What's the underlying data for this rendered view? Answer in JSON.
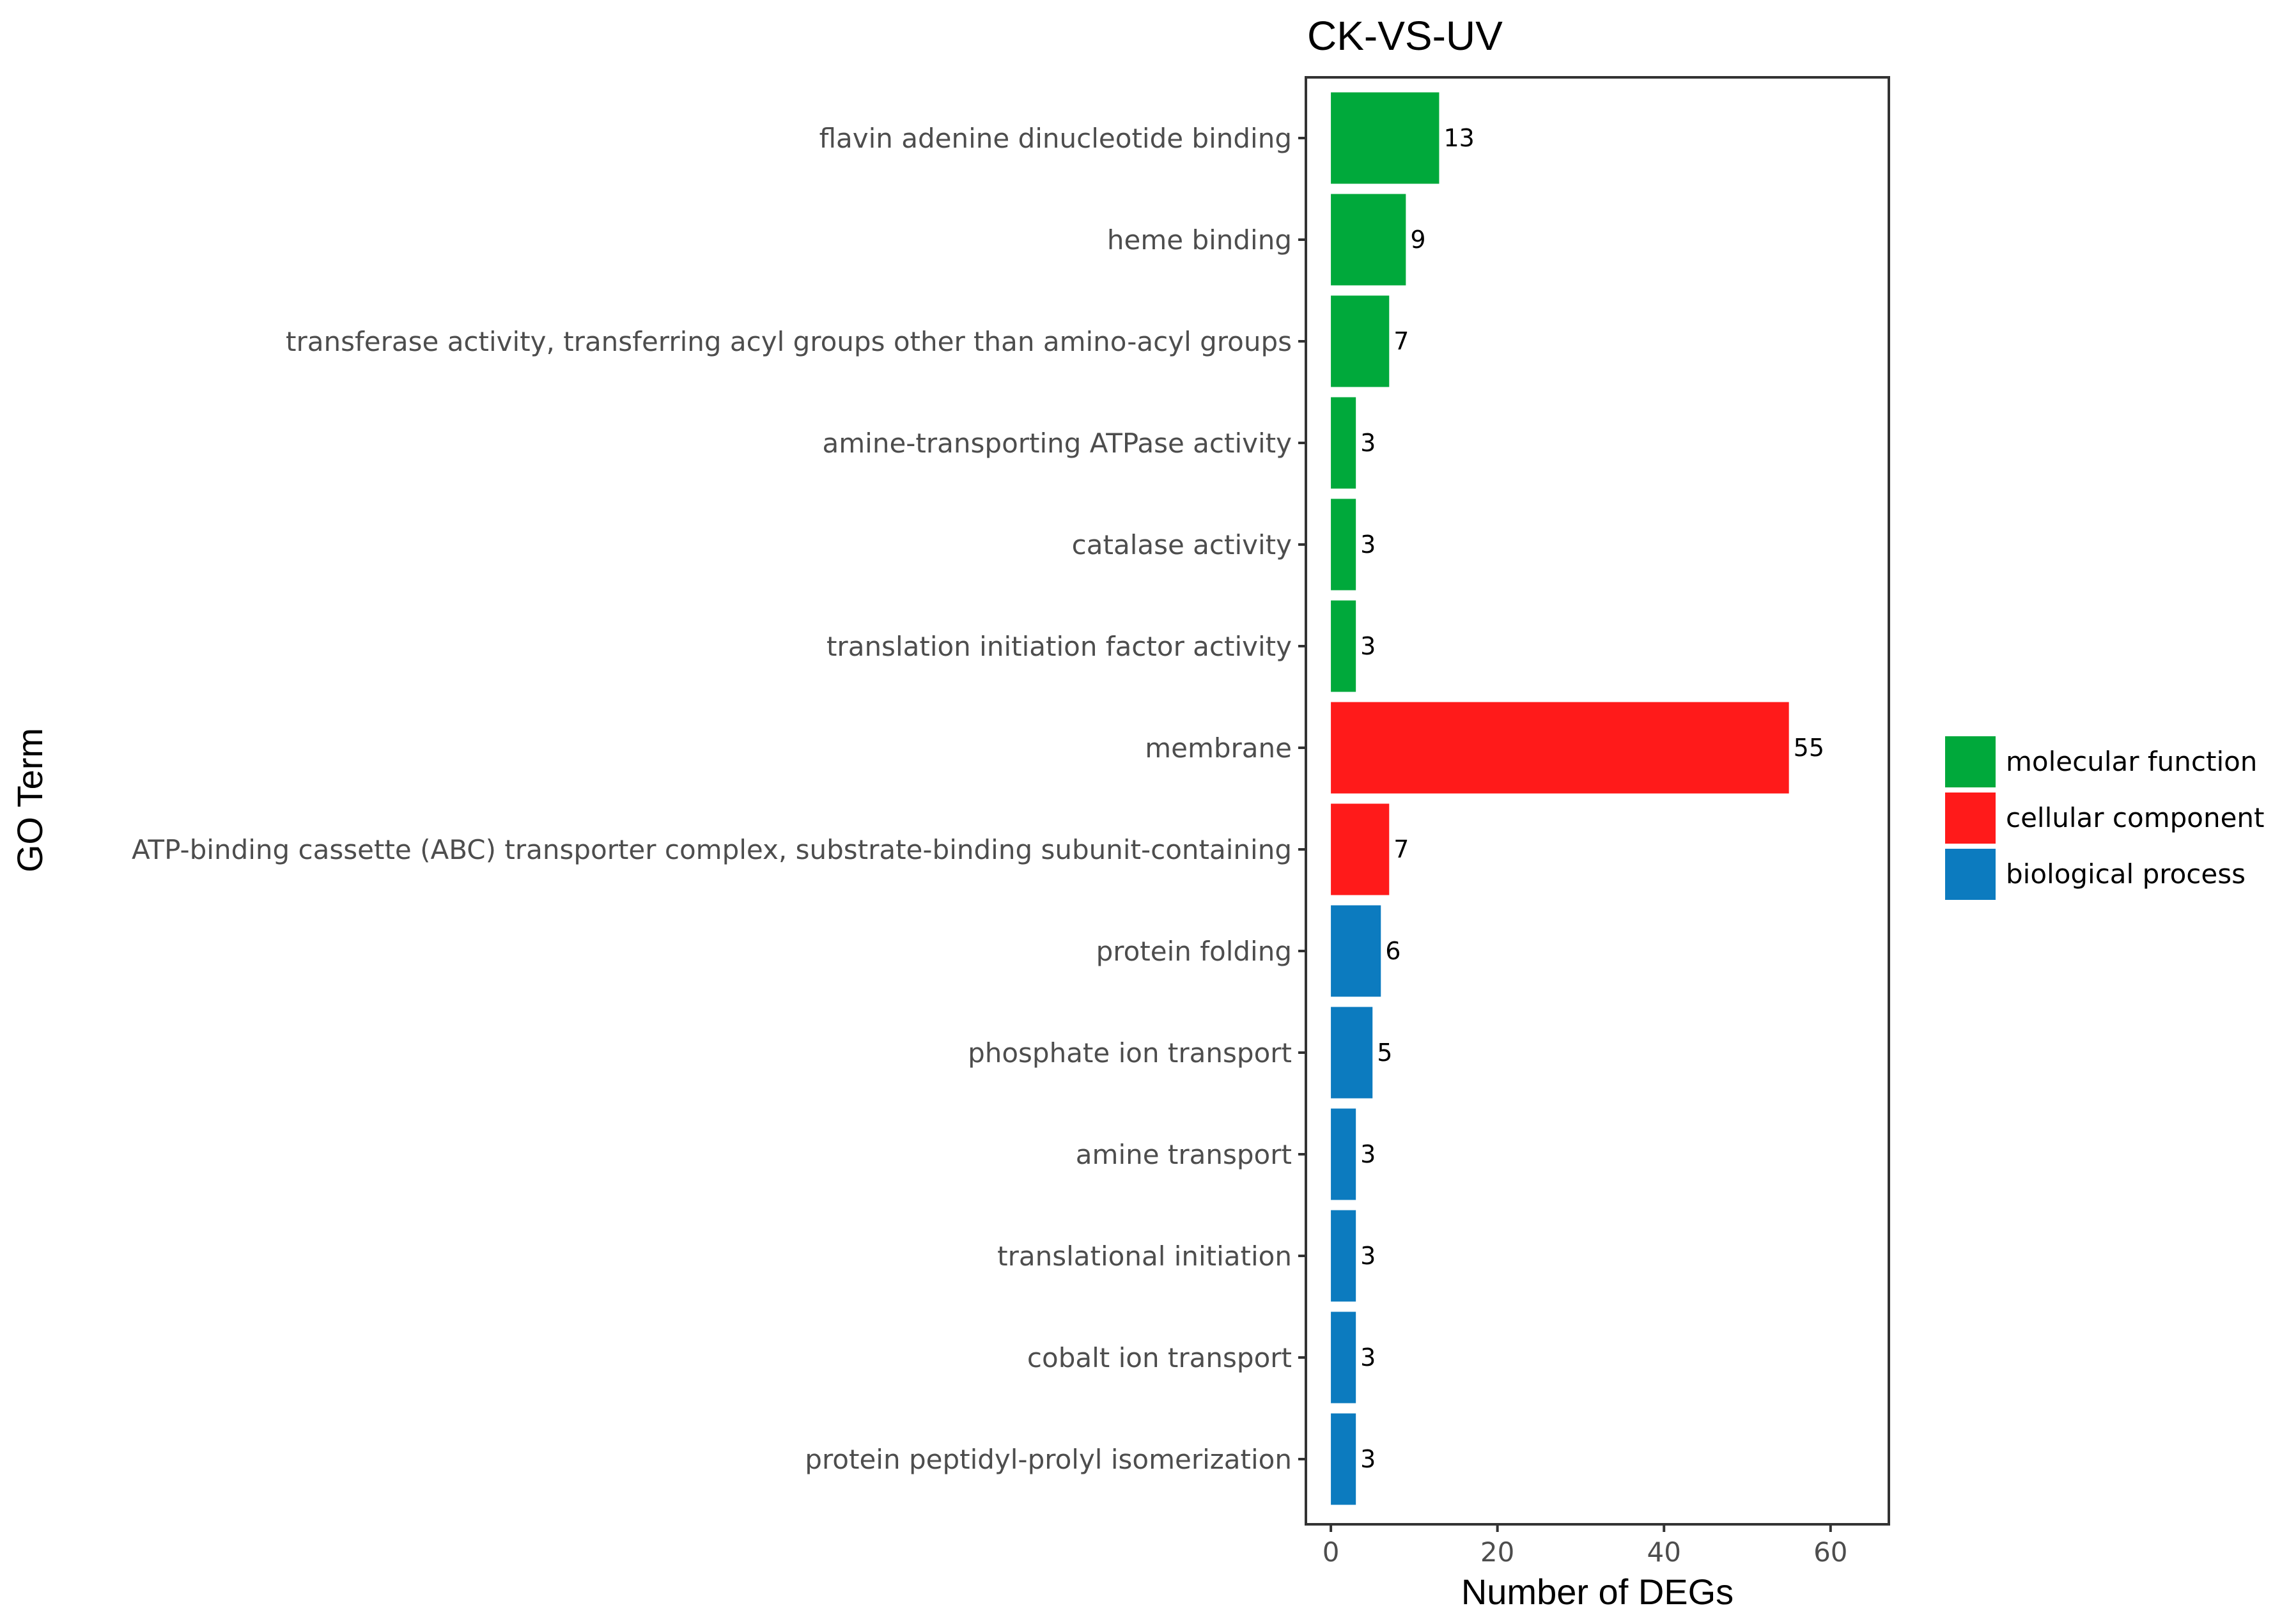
{
  "chart_data": {
    "type": "bar",
    "orientation": "horizontal",
    "title": "CK-VS-UV",
    "xlabel": "Number of DEGs",
    "ylabel": "GO Term",
    "xlim": [
      -3,
      67
    ],
    "xticks": [
      0,
      20,
      40,
      60
    ],
    "grid": false,
    "legend_position": "right",
    "colors": {
      "molecular function": "#00A93B",
      "cellular component": "#FF1A1A",
      "biological process": "#0C7BBF"
    },
    "legend": [
      "molecular function",
      "cellular component",
      "biological process"
    ],
    "categories": [
      "flavin adenine dinucleotide binding",
      "heme binding",
      "transferase activity, transferring acyl groups other than amino-acyl groups",
      "amine-transporting ATPase activity",
      "catalase activity",
      "translation initiation factor activity",
      "membrane",
      "ATP-binding cassette (ABC) transporter complex, substrate-binding subunit-containing",
      "protein folding",
      "phosphate ion transport",
      "amine transport",
      "translational initiation",
      "cobalt ion transport",
      "protein peptidyl-prolyl isomerization"
    ],
    "values": [
      13,
      9,
      7,
      3,
      3,
      3,
      55,
      7,
      6,
      5,
      3,
      3,
      3,
      3
    ],
    "groups": [
      "molecular function",
      "molecular function",
      "molecular function",
      "molecular function",
      "molecular function",
      "molecular function",
      "cellular component",
      "cellular component",
      "biological process",
      "biological process",
      "biological process",
      "biological process",
      "biological process",
      "biological process"
    ]
  }
}
